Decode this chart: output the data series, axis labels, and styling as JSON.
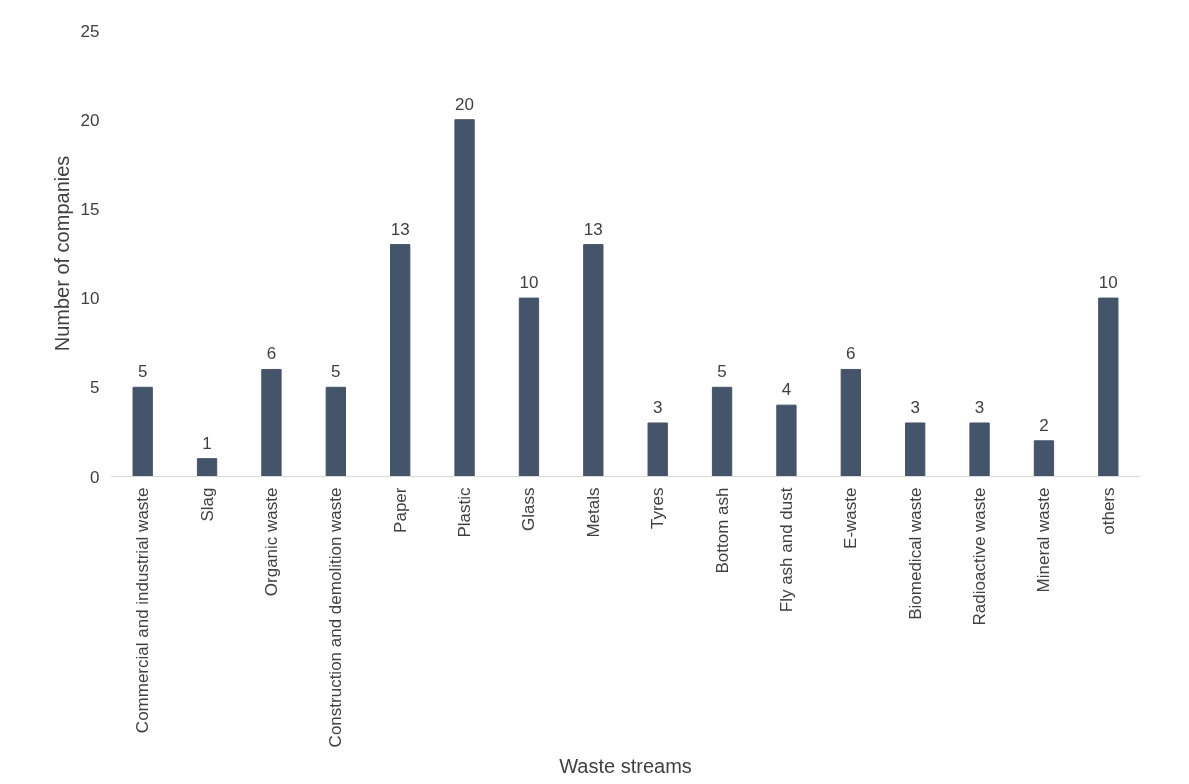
{
  "chart_data": {
    "type": "bar",
    "xlabel": "Waste streams",
    "ylabel": "Number of companies",
    "categories": [
      "Commercial and industrial waste",
      "Slag",
      "Organic waste",
      "Construction and demolition waste",
      "Paper",
      "Plastic",
      "Glass",
      "Metals",
      "Tyres",
      "Bottom ash",
      "Fly ash and dust",
      "E-waste",
      "Biomedical waste",
      "Radioactive waste",
      "Mineral waste",
      "others"
    ],
    "values": [
      5,
      1,
      6,
      5,
      13,
      20,
      10,
      13,
      3,
      5,
      4,
      6,
      3,
      3,
      2,
      10
    ],
    "color": "#44546a",
    "ylim": [
      0,
      25
    ],
    "yticks": [
      0,
      5,
      10,
      15,
      20,
      25
    ],
    "grid": false,
    "data_labels": true
  }
}
